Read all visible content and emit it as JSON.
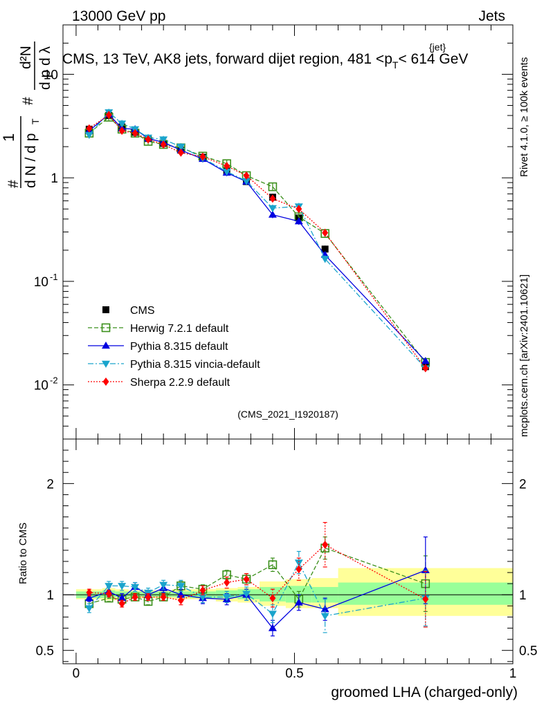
{
  "header": {
    "left": "13000 GeV pp",
    "right": "Jets"
  },
  "side_texts": {
    "rivet": "Rivet 4.1.0, ≥ 100k events",
    "mcplots": "mcplots.cern.ch [arXiv:2401.10621]"
  },
  "colors": {
    "cms": "#000000",
    "herwig": "#3a8f1a",
    "pythia": "#0000e0",
    "vincia": "#1aa4cc",
    "sherpa": "#ff0000",
    "band_inner": "#99ff99",
    "band_outer": "#ffff99"
  },
  "chart_data": [
    {
      "type": "scatter",
      "panel": "main",
      "title": "CMS, 13 TeV, AK8 jets, forward dijet region, 481 <p_T^{jet}< 614 GeV",
      "title_parts": {
        "pre": "CMS, 13 TeV, AK8 jets, forward dijet region, 481 <p",
        "sup": "{jet}",
        "sub": "T",
        "post": "< 614 GeV"
      },
      "ylabel": "1/dN/dp_T  d²N/dp_T dλ",
      "ylabel_parts": {
        "hash": "#",
        "one": "1",
        "dN_over_dpT": "d N / d p",
        "T": "T",
        "d2N": "d²N",
        "dpT_dl": "d p  d λ"
      },
      "yscale": "log",
      "ylim": [
        0.003,
        30
      ],
      "xlim": [
        -0.03,
        1.0
      ],
      "yticks": [
        {
          "v": 0.01,
          "label": "10",
          "sup": "-2"
        },
        {
          "v": 0.1,
          "label": "10",
          "sup": "-1"
        },
        {
          "v": 1,
          "label": "1",
          "sup": ""
        },
        {
          "v": 10,
          "label": "10",
          "sup": ""
        }
      ],
      "annotation": "(CMS_2021_I1920187)",
      "legend_position": "bottom-left",
      "x": [
        0.03,
        0.075,
        0.105,
        0.135,
        0.165,
        0.2,
        0.24,
        0.29,
        0.345,
        0.39,
        0.45,
        0.51,
        0.57,
        0.8
      ],
      "series": [
        {
          "name": "CMS",
          "key": "cms",
          "marker": "square",
          "values": [
            2.95,
            4.0,
            3.1,
            2.75,
            2.4,
            2.15,
            1.85,
            1.58,
            1.17,
            0.92,
            0.65,
            0.41,
            0.205,
            0.015
          ]
        },
        {
          "name": "Herwig 7.2.1 default",
          "key": "herwig",
          "marker": "open-square",
          "values": [
            2.7,
            3.85,
            2.95,
            2.7,
            2.25,
            2.1,
            1.95,
            1.62,
            1.37,
            1.05,
            0.82,
            0.42,
            0.29,
            0.0165
          ]
        },
        {
          "name": "Pythia 8.315 default",
          "key": "pythia",
          "marker": "triangle-up",
          "values": [
            2.85,
            4.1,
            3.0,
            2.95,
            2.4,
            2.2,
            1.85,
            1.52,
            1.12,
            0.92,
            0.44,
            0.38,
            0.18,
            0.017
          ]
        },
        {
          "name": "Pythia 8.315 vincia-default",
          "key": "vincia",
          "marker": "triangle-down",
          "values": [
            2.6,
            4.3,
            3.35,
            2.95,
            2.45,
            2.35,
            2.0,
            1.55,
            1.15,
            0.93,
            0.51,
            0.53,
            0.165,
            0.0145
          ]
        },
        {
          "name": "Sherpa 2.2.9 default",
          "key": "sherpa",
          "marker": "diamond",
          "values": [
            3.0,
            4.05,
            2.85,
            2.7,
            2.35,
            2.1,
            1.75,
            1.6,
            1.3,
            1.05,
            0.63,
            0.5,
            0.295,
            0.0145
          ]
        }
      ]
    },
    {
      "type": "scatter",
      "panel": "ratio",
      "ylabel": "Ratio to CMS",
      "xlabel": "groomed LHA (charged-only)",
      "ylim": [
        0.38,
        2.4
      ],
      "xlim": [
        -0.03,
        1.0
      ],
      "yticks": [
        {
          "v": 0.5,
          "label": "0.5"
        },
        {
          "v": 1,
          "label": "1"
        },
        {
          "v": 2,
          "label": "2"
        }
      ],
      "xticks": [
        {
          "v": 0,
          "label": "0"
        },
        {
          "v": 0.5,
          "label": "0.5"
        },
        {
          "v": 1,
          "label": "1"
        }
      ],
      "x": [
        0.03,
        0.075,
        0.105,
        0.135,
        0.165,
        0.2,
        0.24,
        0.29,
        0.345,
        0.39,
        0.45,
        0.51,
        0.57,
        0.8
      ],
      "bands": [
        {
          "x0": 0.0,
          "x1": 0.06,
          "inner": [
            0.97,
            1.03
          ],
          "outer": [
            0.96,
            1.05
          ]
        },
        {
          "x0": 0.06,
          "x1": 0.09,
          "inner": [
            0.97,
            1.04
          ],
          "outer": [
            0.95,
            1.06
          ]
        },
        {
          "x0": 0.09,
          "x1": 0.12,
          "inner": [
            0.98,
            1.03
          ],
          "outer": [
            0.96,
            1.05
          ]
        },
        {
          "x0": 0.12,
          "x1": 0.15,
          "inner": [
            0.98,
            1.03
          ],
          "outer": [
            0.97,
            1.04
          ]
        },
        {
          "x0": 0.15,
          "x1": 0.18,
          "inner": [
            0.98,
            1.03
          ],
          "outer": [
            0.97,
            1.04
          ]
        },
        {
          "x0": 0.18,
          "x1": 0.22,
          "inner": [
            0.98,
            1.03
          ],
          "outer": [
            0.97,
            1.04
          ]
        },
        {
          "x0": 0.22,
          "x1": 0.26,
          "inner": [
            0.98,
            1.03
          ],
          "outer": [
            0.96,
            1.05
          ]
        },
        {
          "x0": 0.26,
          "x1": 0.32,
          "inner": [
            0.97,
            1.03
          ],
          "outer": [
            0.96,
            1.05
          ]
        },
        {
          "x0": 0.32,
          "x1": 0.37,
          "inner": [
            0.97,
            1.04
          ],
          "outer": [
            0.94,
            1.06
          ]
        },
        {
          "x0": 0.37,
          "x1": 0.42,
          "inner": [
            0.96,
            1.05
          ],
          "outer": [
            0.93,
            1.07
          ]
        },
        {
          "x0": 0.42,
          "x1": 0.48,
          "inner": [
            0.94,
            1.07
          ],
          "outer": [
            0.9,
            1.12
          ]
        },
        {
          "x0": 0.48,
          "x1": 0.54,
          "inner": [
            0.93,
            1.08
          ],
          "outer": [
            0.88,
            1.14
          ]
        },
        {
          "x0": 0.54,
          "x1": 0.6,
          "inner": [
            0.93,
            1.07
          ],
          "outer": [
            0.88,
            1.15
          ]
        },
        {
          "x0": 0.6,
          "x1": 1.0,
          "inner": [
            0.91,
            1.11
          ],
          "outer": [
            0.81,
            1.24
          ]
        }
      ],
      "series": [
        {
          "name": "Herwig 7.2.1 default",
          "key": "herwig",
          "marker": "open-square",
          "values": [
            0.92,
            0.97,
            0.96,
            0.98,
            0.94,
            0.98,
            1.08,
            1.05,
            1.18,
            1.14,
            1.27,
            0.96,
            1.42,
            1.1
          ],
          "errors": [
            0.03,
            0.03,
            0.03,
            0.03,
            0.03,
            0.03,
            0.04,
            0.04,
            0.04,
            0.05,
            0.06,
            0.07,
            0.1,
            0.25
          ]
        },
        {
          "name": "Pythia 8.315 default",
          "key": "pythia",
          "marker": "triangle-up",
          "values": [
            0.97,
            1.03,
            0.97,
            1.07,
            1.0,
            1.06,
            1.0,
            0.97,
            0.96,
            1.0,
            0.7,
            0.93,
            0.87,
            1.22
          ],
          "errors": [
            0.03,
            0.04,
            0.04,
            0.04,
            0.04,
            0.04,
            0.05,
            0.05,
            0.05,
            0.05,
            0.07,
            0.07,
            0.1,
            0.3
          ]
        },
        {
          "name": "Pythia 8.315 vincia-default",
          "key": "vincia",
          "marker": "triangle-down",
          "values": [
            0.88,
            1.08,
            1.08,
            1.07,
            1.02,
            1.09,
            1.08,
            0.98,
            0.98,
            1.01,
            0.83,
            1.29,
            0.81,
            0.97
          ],
          "errors": [
            0.04,
            0.04,
            0.04,
            0.04,
            0.04,
            0.04,
            0.05,
            0.05,
            0.05,
            0.06,
            0.08,
            0.1,
            0.15,
            0.25
          ]
        },
        {
          "name": "Sherpa 2.2.9 default",
          "key": "sherpa",
          "marker": "diamond",
          "values": [
            1.02,
            1.01,
            0.92,
            0.98,
            0.98,
            0.98,
            0.95,
            1.04,
            1.11,
            1.14,
            0.97,
            1.23,
            1.45,
            0.96
          ],
          "errors": [
            0.03,
            0.03,
            0.03,
            0.03,
            0.03,
            0.03,
            0.04,
            0.04,
            0.05,
            0.05,
            0.08,
            0.1,
            0.2,
            0.25
          ]
        }
      ]
    }
  ]
}
